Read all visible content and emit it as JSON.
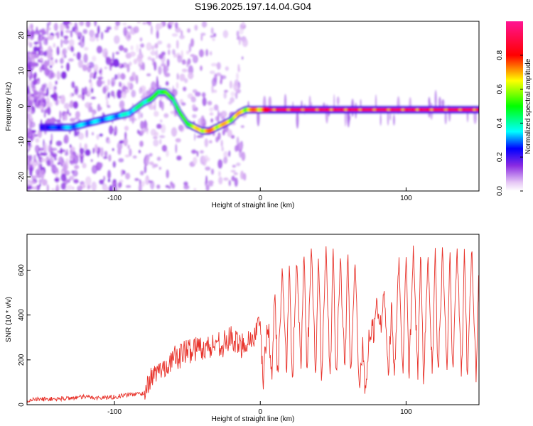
{
  "figure": {
    "title": "S196.2025.197.14.04.G04"
  },
  "chart_data": [
    {
      "type": "heatmap",
      "panel": "spectrogram",
      "xlabel": "Height of straight line (km)",
      "ylabel": "Frequency (Hz)",
      "xlim": [
        -160,
        150
      ],
      "ylim": [
        -24,
        24
      ],
      "x_ticks": [
        -100,
        0,
        100
      ],
      "x_tick_labels": [
        "-100",
        "0",
        "100"
      ],
      "y_ticks": [
        -20,
        -10,
        0,
        10,
        20
      ],
      "y_tick_labels": [
        "-20",
        "-10",
        "0",
        "10",
        "20"
      ],
      "colorbar": {
        "label": "Normalized spectral amplitude",
        "range": [
          0,
          1
        ],
        "ticks": [
          0.0,
          0.2,
          0.4,
          0.6,
          0.8
        ],
        "tick_labels": [
          "0.0",
          "0.2",
          "0.4",
          "0.6",
          "0.8"
        ],
        "colormap": [
          "#ffffff",
          "#e6c8f5",
          "#8a2be2",
          "#0000ff",
          "#00ffff",
          "#00ff00",
          "#ffff00",
          "#ff0000",
          "#ff1493"
        ]
      },
      "ridge": {
        "x": [
          -160,
          -140,
          -130,
          -120,
          -110,
          -100,
          -90,
          -80,
          -75,
          -70,
          -65,
          -60,
          -55,
          -50,
          -45,
          -40,
          -35,
          -30,
          -25,
          -20,
          -15,
          -10,
          -5,
          0,
          5,
          10,
          20,
          40,
          60,
          80,
          100,
          120,
          150
        ],
        "y": [
          -6,
          -6,
          -6,
          -5,
          -4,
          -3,
          -2,
          1,
          2,
          4,
          4,
          2,
          -2,
          -5,
          -6,
          -7,
          -7,
          -6,
          -5,
          -4,
          -2,
          -1,
          -1,
          -1,
          -1,
          -1,
          -1,
          -1,
          -1,
          -1,
          -1,
          -1,
          -1
        ],
        "amplitude": [
          0.2,
          0.3,
          0.35,
          0.35,
          0.35,
          0.35,
          0.4,
          0.45,
          0.5,
          0.55,
          0.55,
          0.55,
          0.5,
          0.6,
          0.65,
          0.75,
          0.75,
          0.75,
          0.7,
          0.7,
          0.7,
          0.7,
          0.75,
          0.8,
          0.85,
          0.9,
          0.9,
          0.9,
          0.9,
          0.9,
          0.9,
          0.9,
          0.9
        ]
      }
    },
    {
      "type": "line",
      "panel": "snr",
      "xlabel": "Height of straight line (km)",
      "ylabel": "SNR (10 * v/v)",
      "xlim": [
        -160,
        150
      ],
      "ylim": [
        0,
        760
      ],
      "x_ticks": [
        -100,
        0,
        100
      ],
      "x_tick_labels": [
        "-100",
        "0",
        "100"
      ],
      "y_ticks": [
        0,
        200,
        400,
        600
      ],
      "y_tick_labels": [
        "0",
        "200",
        "400",
        "600"
      ],
      "series": [
        {
          "color": "#e8322a",
          "x": [
            -160,
            -150,
            -140,
            -130,
            -120,
            -110,
            -100,
            -90,
            -80,
            -75,
            -70,
            -65,
            -60,
            -55,
            -50,
            -45,
            -40,
            -35,
            -30,
            -25,
            -20,
            -15,
            -10,
            -5,
            0,
            2,
            5,
            8,
            10,
            12,
            15,
            18,
            20,
            22,
            25,
            28,
            30,
            32,
            35,
            38,
            40,
            42,
            45,
            48,
            50,
            52,
            55,
            58,
            60,
            62,
            65,
            68,
            70,
            72,
            75,
            78,
            80,
            82,
            85,
            88,
            90,
            92,
            95,
            98,
            100,
            102,
            105,
            108,
            110,
            112,
            115,
            118,
            120,
            122,
            125,
            128,
            130,
            132,
            135,
            138,
            140,
            142,
            145,
            148,
            150
          ],
          "y": [
            20,
            25,
            25,
            30,
            35,
            30,
            35,
            45,
            50,
            120,
            150,
            170,
            200,
            220,
            240,
            250,
            260,
            250,
            280,
            270,
            300,
            260,
            280,
            300,
            350,
            100,
            380,
            120,
            520,
            100,
            600,
            130,
            610,
            110,
            640,
            130,
            700,
            120,
            710,
            120,
            660,
            130,
            700,
            120,
            720,
            110,
            640,
            130,
            700,
            110,
            660,
            60,
            280,
            60,
            320,
            330,
            480,
            300,
            520,
            100,
            460,
            120,
            650,
            120,
            700,
            120,
            690,
            120,
            680,
            120,
            690,
            130,
            700,
            110,
            700,
            130,
            690,
            120,
            700,
            110,
            680,
            130,
            690,
            120,
            650
          ]
        }
      ]
    }
  ]
}
